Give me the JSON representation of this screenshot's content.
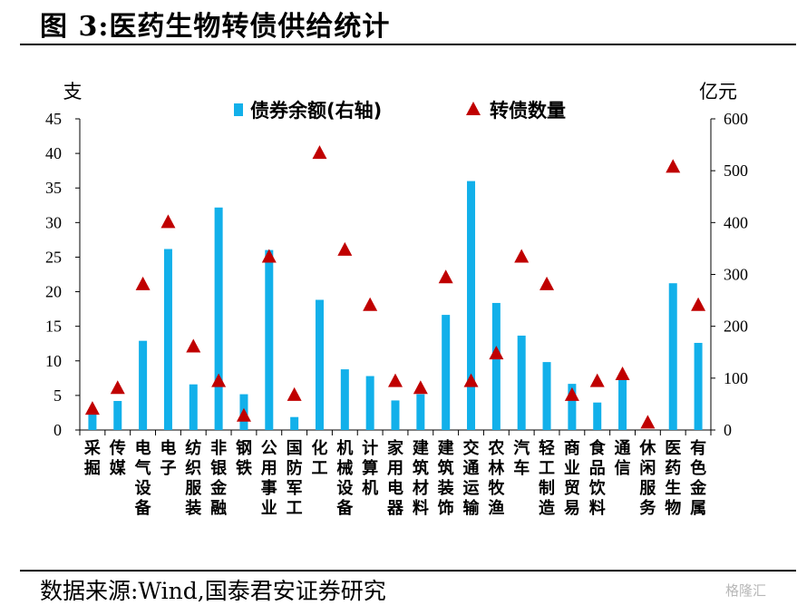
{
  "title": "图 3:医药生物转债供给统计",
  "source": "数据来源:Wind,国泰君安证券研究",
  "watermark": "格隆汇",
  "colors": {
    "bar": "#12b0ea",
    "marker": "#c00000",
    "axis": "#000000"
  },
  "chart_data": {
    "type": "bar",
    "title": "医药生物转债供给统计",
    "y_left_label": "支",
    "y_right_label": "亿元",
    "y_left_range": [
      0,
      45
    ],
    "y_left_ticks": [
      0,
      5,
      10,
      15,
      20,
      25,
      30,
      35,
      40,
      45
    ],
    "y_right_range": [
      0,
      600
    ],
    "y_right_ticks": [
      0,
      100,
      200,
      300,
      400,
      500,
      600
    ],
    "legend": {
      "bars": "债券余额(右轴)",
      "markers": "转债数量",
      "position": "top"
    },
    "categories": [
      "采掘",
      "传媒",
      "电气设备",
      "电子",
      "纺织服装",
      "非银金融",
      "钢铁",
      "公用事业",
      "国防军工",
      "化工",
      "机械设备",
      "计算机",
      "家用电器",
      "建筑材料",
      "建筑装饰",
      "交通运输",
      "农林牧渔",
      "汽车",
      "轻工制造",
      "商业贸易",
      "食品饮料",
      "通信",
      "休闲服务",
      "医药生物",
      "有色金属"
    ],
    "series": [
      {
        "name": "债券余额(右轴)",
        "type": "bar",
        "axis": "right",
        "values": [
          37,
          56,
          172,
          349,
          88,
          429,
          69,
          347,
          25,
          251,
          117,
          104,
          57,
          69,
          222,
          480,
          245,
          182,
          131,
          89,
          53,
          99,
          0,
          283,
          168
        ]
      },
      {
        "name": "转债数量",
        "type": "scatter",
        "axis": "left",
        "values": [
          3,
          6,
          21,
          30,
          12,
          7,
          2,
          25,
          5,
          40,
          26,
          18,
          7,
          6,
          22,
          7,
          11,
          25,
          21,
          5,
          7,
          8,
          1,
          38,
          18
        ]
      }
    ]
  }
}
